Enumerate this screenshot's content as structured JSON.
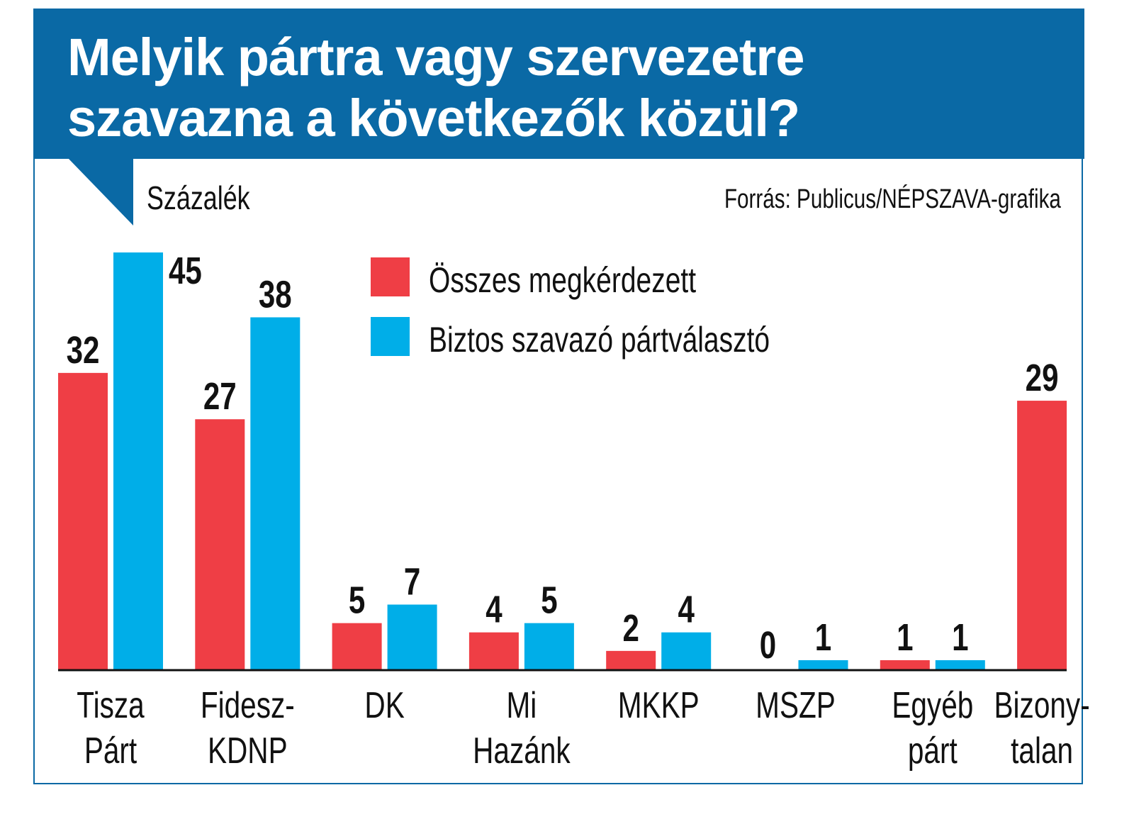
{
  "chart_data": {
    "type": "bar",
    "title": "Melyik pártra vagy szervezetre szavazna a következők közül?",
    "title_lines": [
      "Melyik pártra vagy szervezetre",
      "szavazna a következők közül?"
    ],
    "ylabel": "Százalék",
    "source": "Forrás: Publicus/NÉPSZAVA-grafika",
    "categories": [
      [
        "Tisza",
        "Párt"
      ],
      [
        "Fidesz-",
        "KDNP"
      ],
      [
        "DK"
      ],
      [
        "Mi",
        "Hazánk"
      ],
      [
        "MKKP"
      ],
      [
        "MSZP"
      ],
      [
        "Egyéb",
        "párt"
      ],
      [
        "Bizony-",
        "talan"
      ]
    ],
    "series": [
      {
        "name": "Összes megkérdezett",
        "color": "#ef3e45",
        "values": [
          32,
          27,
          5,
          4,
          2,
          0,
          1,
          29
        ]
      },
      {
        "name": "Biztos szavazó pártválasztó",
        "color": "#00aee8",
        "values": [
          45,
          38,
          7,
          5,
          4,
          1,
          1,
          null
        ]
      }
    ],
    "ylim": [
      0,
      45
    ],
    "grid": false,
    "legend": "top-center"
  }
}
